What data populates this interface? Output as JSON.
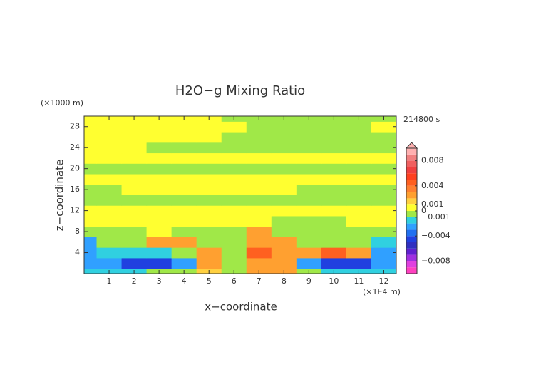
{
  "chart_data": {
    "type": "contour",
    "title": "H2O−g Mixing Ratio",
    "time_label": "214800 s",
    "x_unit_label": "(×1E4 m)",
    "y_unit_label": "(×1000 m)",
    "x_label": "x−coordinate",
    "y_label": "z−coordinate",
    "x": [
      0,
      1,
      2,
      3,
      4,
      5,
      6,
      7,
      8,
      9,
      10,
      11,
      12
    ],
    "y": [
      0,
      2,
      4,
      6,
      8,
      10,
      12,
      14,
      16,
      18,
      20,
      22,
      24,
      26,
      28,
      30
    ],
    "z": [
      [
        -0.0015,
        -0.0015,
        -0.0015,
        -0.0005,
        -0.0005,
        0.0015,
        -0.0005,
        0.0025,
        0.0025,
        -0.0005,
        -0.0015,
        -0.0015,
        -0.0015
      ],
      [
        -0.0025,
        -0.0025,
        -0.0045,
        -0.0045,
        -0.0025,
        0.0025,
        -0.0005,
        0.0025,
        0.0025,
        -0.0025,
        -0.0045,
        -0.0045,
        -0.0025
      ],
      [
        -0.0025,
        -0.0015,
        -0.0015,
        -0.0015,
        -0.0005,
        0.0025,
        -0.0005,
        0.0045,
        0.0025,
        0.0025,
        0.0045,
        0.0025,
        -0.0025
      ],
      [
        -0.0025,
        -0.0005,
        -0.0005,
        0.0025,
        0.0025,
        -0.0005,
        -0.0005,
        0.0025,
        0.0025,
        -0.0005,
        -0.0005,
        -0.0005,
        -0.0015
      ],
      [
        -0.0005,
        -0.0005,
        -0.0005,
        0.0005,
        -0.0005,
        -0.0005,
        -0.0005,
        0.0025,
        -0.0005,
        -0.0005,
        -0.0005,
        -0.0005,
        -0.0005
      ],
      [
        0.0005,
        0.0005,
        0.0005,
        0.0005,
        0.0005,
        0.0005,
        0.0005,
        0.0005,
        -0.0005,
        -0.0005,
        -0.0005,
        0.0005,
        0.0005
      ],
      [
        0.0005,
        0.0005,
        0.0005,
        0.0005,
        0.0005,
        0.0005,
        0.0005,
        0.0005,
        0.0005,
        0.0005,
        0.0005,
        0.0005,
        0.0005
      ],
      [
        -0.0005,
        -0.0005,
        -0.0005,
        -0.0005,
        -0.0005,
        -0.0005,
        -0.0005,
        -0.0005,
        -0.0005,
        -0.0005,
        -0.0005,
        -0.0005,
        -0.0005
      ],
      [
        -0.0005,
        -0.0005,
        0.0005,
        0.0005,
        0.0005,
        0.0005,
        0.0005,
        0.0005,
        0.0005,
        -0.0005,
        -0.0005,
        -0.0005,
        -0.0005
      ],
      [
        0.0005,
        0.0005,
        0.0005,
        0.0005,
        0.0005,
        0.0005,
        0.0005,
        0.0005,
        0.0005,
        0.0005,
        0.0005,
        0.0005,
        0.0005
      ],
      [
        -0.0005,
        -0.0005,
        -0.0005,
        -0.0005,
        -0.0005,
        -0.0005,
        -0.0005,
        -0.0005,
        -0.0005,
        -0.0005,
        -0.0005,
        -0.0005,
        -0.0005
      ],
      [
        0.0005,
        0.0005,
        0.0005,
        0.0005,
        0.0005,
        0.0005,
        0.0005,
        0.0005,
        0.0005,
        0.0005,
        0.0005,
        0.0005,
        0.0005
      ],
      [
        0.0005,
        0.0005,
        0.0005,
        -0.0005,
        -0.0005,
        -0.0005,
        -0.0005,
        -0.0005,
        -0.0005,
        -0.0005,
        -0.0005,
        -0.0005,
        -0.0005
      ],
      [
        0.0005,
        0.0005,
        0.0005,
        0.0005,
        0.0005,
        0.0005,
        -0.0005,
        -0.0005,
        -0.0005,
        -0.0005,
        -0.0005,
        -0.0005,
        -0.0005
      ],
      [
        0.0005,
        0.0005,
        0.0005,
        0.0005,
        0.0005,
        0.0005,
        0.0005,
        -0.0005,
        -0.0005,
        -0.0005,
        -0.0005,
        -0.0005,
        0.0005
      ],
      [
        0.0005,
        0.0005,
        0.0005,
        0.0005,
        0.0005,
        0.0005,
        -0.0005,
        -0.0005,
        -0.0005,
        -0.0005,
        -0.0005,
        -0.0005,
        -0.0005
      ]
    ],
    "xlim": [
      0,
      12.5
    ],
    "ylim": [
      0,
      30
    ],
    "xticks": [
      1,
      2,
      3,
      4,
      5,
      6,
      7,
      8,
      9,
      10,
      11,
      12
    ],
    "yticks": [
      4,
      8,
      12,
      16,
      20,
      24,
      28
    ],
    "colorbar": {
      "lim": [
        -0.01,
        0.01
      ],
      "extend_top": true,
      "ticks": [
        0.008,
        0.004,
        0.001,
        0,
        {
          "value": -0.001,
          "label": "−0.001"
        },
        {
          "value": -0.004,
          "label": "−0.004"
        },
        {
          "value": -0.008,
          "label": "−0.008"
        }
      ],
      "levels": [
        -0.01,
        -0.009,
        -0.008,
        -0.007,
        -0.006,
        -0.005,
        -0.004,
        -0.003,
        -0.002,
        -0.001,
        0,
        0.001,
        0.002,
        0.003,
        0.004,
        0.005,
        0.006,
        0.007,
        0.008,
        0.009,
        0.01
      ],
      "colors": [
        "#ff40c0",
        "#e040e0",
        "#a030e0",
        "#6020d0",
        "#3030c0",
        "#2040e0",
        "#2070f0",
        "#30a0ff",
        "#30d0e0",
        "#a0e848",
        "#ffff30",
        "#ffd040",
        "#ffa030",
        "#ff8030",
        "#ff6020",
        "#ff4020",
        "#f04040",
        "#f06060",
        "#f08080",
        "#ffb0b0"
      ]
    }
  }
}
